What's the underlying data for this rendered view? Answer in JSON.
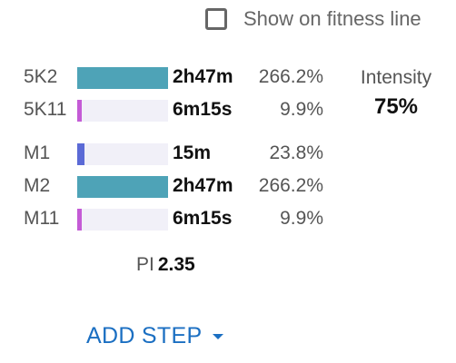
{
  "fitness_toggle": {
    "label": "Show on fitness line",
    "checked": false
  },
  "steps": [
    {
      "name": "5K2",
      "duration": "2h47m",
      "percent": "266.2%",
      "fill": 1.0,
      "color": "#4ea3b7"
    },
    {
      "name": "5K11",
      "duration": "6m15s",
      "percent": "9.9%",
      "fill": 0.04,
      "color": "#c45bd6"
    },
    {
      "name": "M1",
      "duration": "15m",
      "percent": "23.8%",
      "fill": 0.08,
      "color": "#5b6ad6"
    },
    {
      "name": "M2",
      "duration": "2h47m",
      "percent": "266.2%",
      "fill": 1.0,
      "color": "#4ea3b7"
    },
    {
      "name": "M11",
      "duration": "6m15s",
      "percent": "9.9%",
      "fill": 0.04,
      "color": "#c45bd6"
    }
  ],
  "intensity": {
    "label": "Intensity",
    "value": "75%"
  },
  "pi": {
    "label": "PI",
    "value": "2.35"
  },
  "add_step": {
    "label": "ADD STEP",
    "icon": "caret-down-icon"
  }
}
